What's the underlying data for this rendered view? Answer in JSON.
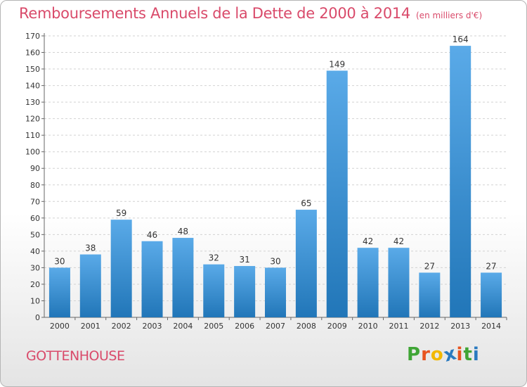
{
  "title": "Remboursements Annuels de la Dette de 2000 à 2014",
  "subtitle": "(en milliers d'€)",
  "commune": "GOTTENHOUSE",
  "logo": {
    "letters": [
      "P",
      "r",
      "o",
      "x",
      "i",
      "t",
      "i"
    ],
    "colors": [
      "#3fa535",
      "#e8531f",
      "#f2b800",
      "#2a7ac0",
      "#e8531f",
      "#3fa535",
      "#2a7ac0"
    ]
  },
  "colors": {
    "title": "#d94a6a",
    "bar_top": "#5aaae8",
    "bar_bottom": "#2176b8"
  },
  "chart_data": {
    "type": "bar",
    "title": "Remboursements Annuels de la Dette de 2000 à 2014",
    "subtitle": "(en milliers d'€)",
    "categories": [
      "2000",
      "2001",
      "2002",
      "2003",
      "2004",
      "2005",
      "2006",
      "2007",
      "2008",
      "2009",
      "2010",
      "2011",
      "2012",
      "2013",
      "2014"
    ],
    "values": [
      30,
      38,
      59,
      46,
      48,
      32,
      31,
      30,
      65,
      149,
      42,
      42,
      27,
      164,
      27
    ],
    "ylim": [
      0,
      170
    ],
    "yticks": [
      0,
      10,
      20,
      30,
      40,
      50,
      60,
      70,
      80,
      90,
      100,
      110,
      120,
      130,
      140,
      150,
      160,
      170
    ],
    "grid": true,
    "data_labels": true
  }
}
